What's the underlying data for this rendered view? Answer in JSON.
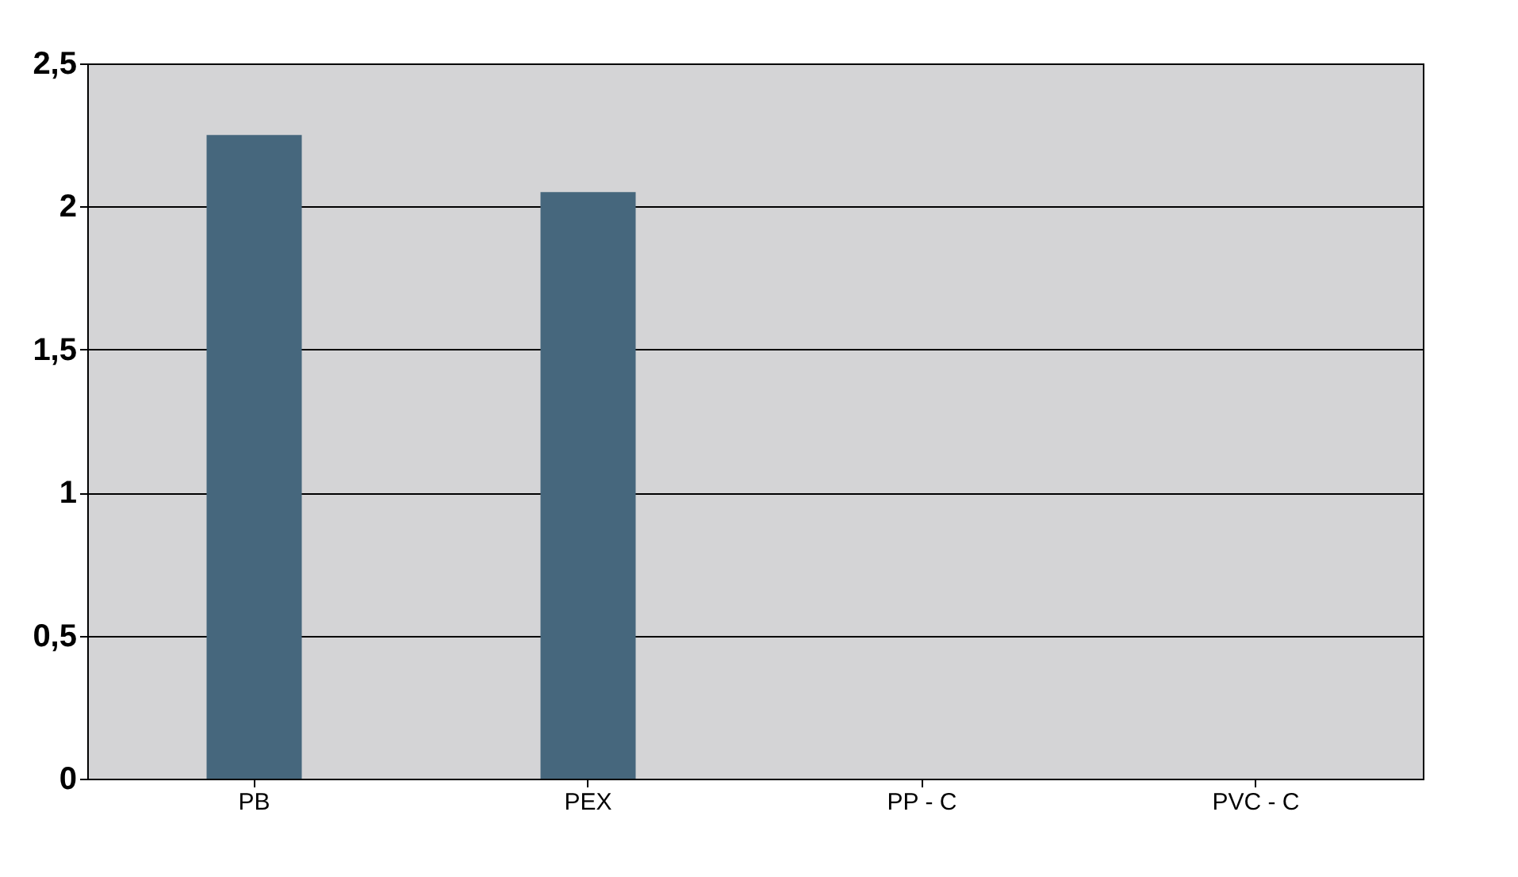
{
  "chart_data": {
    "type": "bar",
    "categories": [
      "PB",
      "PEX",
      "PP - C",
      "PVC - C"
    ],
    "values": [
      2.25,
      2.05,
      0,
      0
    ],
    "color": "#46677d",
    "ylim": [
      0,
      2.5
    ],
    "yticks": [
      0,
      {
        "value": 0.5,
        "label": "0,5"
      },
      1,
      {
        "value": 1.5,
        "label": "1,5"
      },
      2,
      {
        "value": 2.5,
        "label": "2,5"
      }
    ],
    "grid": "y"
  }
}
